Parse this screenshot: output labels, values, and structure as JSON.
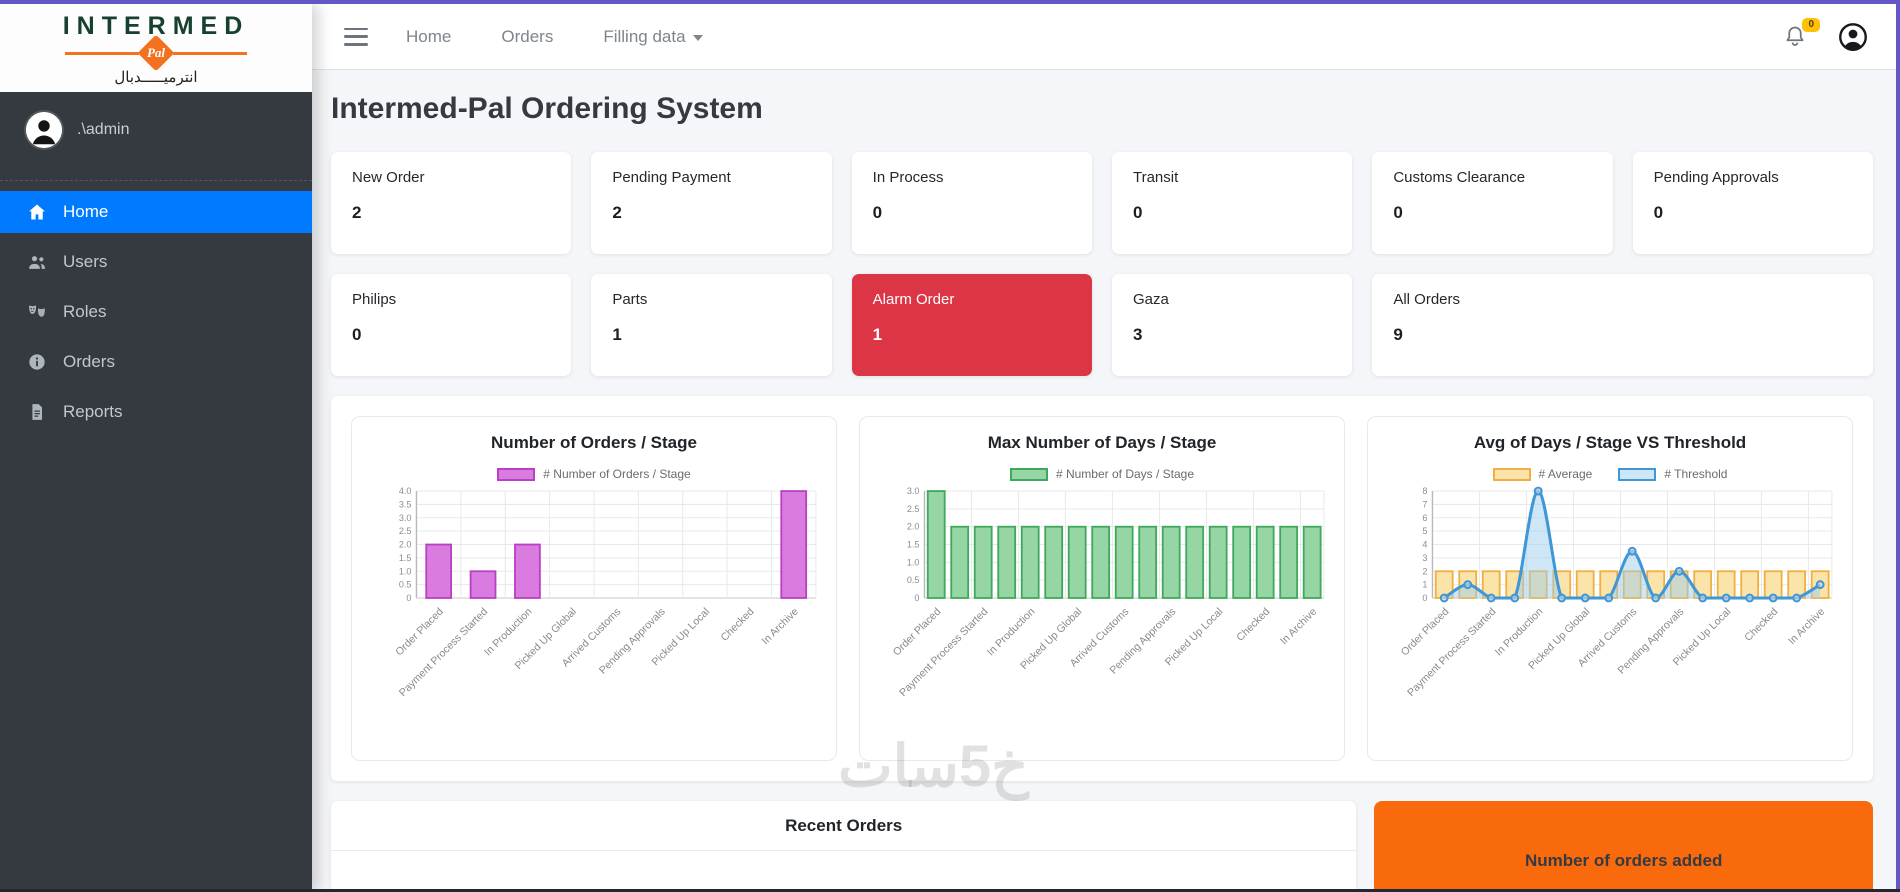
{
  "app": {
    "heading": "Intermed-Pal Ordering System"
  },
  "topnav": {
    "links": [
      {
        "label": "Home",
        "dropdown": false
      },
      {
        "label": "Orders",
        "dropdown": false
      },
      {
        "label": "Filling data",
        "dropdown": true
      }
    ],
    "notification_badge": "0"
  },
  "sidebar": {
    "logo": {
      "word": "INTERMED",
      "diamond_text": "Pal",
      "arabic": "انترميـــــدبال"
    },
    "user_name": ".\\admin",
    "items": [
      {
        "label": "Home",
        "icon": "home-icon",
        "active": true
      },
      {
        "label": "Users",
        "icon": "users-icon",
        "active": false
      },
      {
        "label": "Roles",
        "icon": "masks-icon",
        "active": false
      },
      {
        "label": "Orders",
        "icon": "info-icon",
        "active": false
      },
      {
        "label": "Reports",
        "icon": "report-icon",
        "active": false
      }
    ]
  },
  "cards_row1": [
    {
      "label": "New Order",
      "value": "2"
    },
    {
      "label": "Pending Payment",
      "value": "2"
    },
    {
      "label": "In Process",
      "value": "0"
    },
    {
      "label": "Transit",
      "value": "0"
    },
    {
      "label": "Customs Clearance",
      "value": "0"
    },
    {
      "label": "Pending Approvals",
      "value": "0"
    }
  ],
  "cards_row2": [
    {
      "label": "Philips",
      "value": "0",
      "variant": "normal",
      "span": 1
    },
    {
      "label": "Parts",
      "value": "1",
      "variant": "normal",
      "span": 1
    },
    {
      "label": "Alarm Order",
      "value": "1",
      "variant": "danger",
      "span": 1
    },
    {
      "label": "Gaza",
      "value": "3",
      "variant": "normal",
      "span": 1
    },
    {
      "label": "All Orders",
      "value": "9",
      "variant": "normal",
      "span": 2
    }
  ],
  "chart_data": [
    {
      "type": "bar",
      "title": "Number of Orders / Stage",
      "categories": [
        "Order Placed",
        "Payment Process Started",
        "In Production",
        "Picked Up Global",
        "Arrived Customs",
        "Pending Approvals",
        "Picked Up Local",
        "Checked",
        "In Archive"
      ],
      "n_slots": 9,
      "label_step": 1,
      "ylim": [
        0,
        4
      ],
      "y_tick_step": 0.5,
      "grid": true,
      "legend_position": "top",
      "series": [
        {
          "name": "# Number of Orders / Stage",
          "type": "bar",
          "values": [
            2,
            1,
            2,
            0,
            0,
            0,
            0,
            0,
            4
          ],
          "fill": "#DA7BDF",
          "stroke": "#BA3FC4"
        }
      ]
    },
    {
      "type": "bar",
      "title": "Max Number of Days / Stage",
      "categories": [
        "Order Placed",
        "Payment Process Started",
        "In Production",
        "Picked Up Global",
        "Arrived Customs",
        "Pending Approvals",
        "Picked Up Local",
        "Checked",
        "In Archive"
      ],
      "n_slots": 17,
      "label_step": 2,
      "ylim": [
        0,
        3
      ],
      "y_tick_step": 0.5,
      "grid": true,
      "legend_position": "top",
      "series": [
        {
          "name": "# Number of Days / Stage",
          "type": "bar",
          "values": [
            3,
            2,
            2,
            2,
            2,
            2,
            2,
            2,
            2,
            2,
            2,
            2,
            2,
            2,
            2,
            2,
            2
          ],
          "fill": "#96D6A4",
          "stroke": "#3EA95E"
        }
      ]
    },
    {
      "type": "bar",
      "title": "Avg of Days / Stage VS Threshold",
      "categories": [
        "Order Placed",
        "Payment Process Started",
        "In Production",
        "Picked Up Global",
        "Arrived Customs",
        "Pending Approvals",
        "Picked Up Local",
        "Checked",
        "In Archive"
      ],
      "n_slots": 17,
      "label_step": 2,
      "ylim": [
        0,
        8
      ],
      "y_tick_step": 1,
      "grid": true,
      "legend_position": "top",
      "series": [
        {
          "name": "# Average",
          "type": "bar",
          "values": [
            2,
            2,
            2,
            2,
            2,
            2,
            2,
            2,
            2,
            2,
            2,
            2,
            2,
            2,
            2,
            2,
            2
          ],
          "fill": "#FBE4A9",
          "stroke": "#F2AF41"
        },
        {
          "name": "# Threshold",
          "type": "line",
          "values": [
            0,
            1,
            0,
            0,
            8,
            0,
            0,
            0,
            3.5,
            0,
            2,
            0,
            0,
            0,
            0,
            0,
            1
          ],
          "fill": "rgba(158,206,235,0.5)",
          "stroke": "#3E97D6"
        }
      ]
    }
  ],
  "bottom": {
    "recent_orders_title": "Recent Orders",
    "orders_added_title": "Number of orders added"
  },
  "watermark": "خ5سات",
  "colors": {
    "accent_blue": "#007bff",
    "danger_red": "#dc3545",
    "brand_orange": "#f96a0d",
    "badge_yellow": "#ffc107",
    "edge_purple": "#6357c5",
    "sidebar_dark": "#343a40"
  }
}
